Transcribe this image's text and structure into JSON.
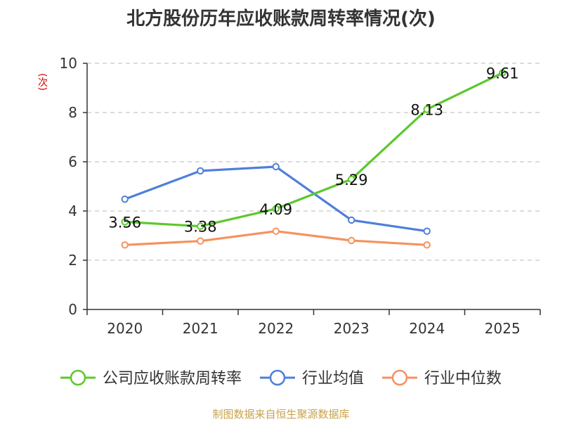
{
  "chart_data": {
    "type": "line",
    "title": "北方股份历年应收账款周转率情况(次)",
    "ylabel": "(次)",
    "categories": [
      "2020",
      "2021",
      "2022",
      "2023",
      "2024",
      "2025"
    ],
    "ylim": [
      0,
      10
    ],
    "yticks": [
      0,
      2,
      4,
      6,
      8,
      10
    ],
    "grid": true,
    "legend_position": "bottom",
    "series": [
      {
        "name": "公司应收账款周转率",
        "color": "#5cc82e",
        "values": [
          3.56,
          3.38,
          4.09,
          5.29,
          8.13,
          9.61
        ],
        "labels": [
          "3.56",
          "3.38",
          "4.09",
          "5.29",
          "8.13",
          "9.61"
        ]
      },
      {
        "name": "行业均值",
        "color": "#4f7fd9",
        "values": [
          4.48,
          5.63,
          5.8,
          3.63,
          3.18,
          null
        ]
      },
      {
        "name": "行业中位数",
        "color": "#f5925e",
        "values": [
          2.62,
          2.78,
          3.18,
          2.8,
          2.62,
          null
        ]
      }
    ]
  },
  "source": "制图数据来自恒生聚源数据库"
}
